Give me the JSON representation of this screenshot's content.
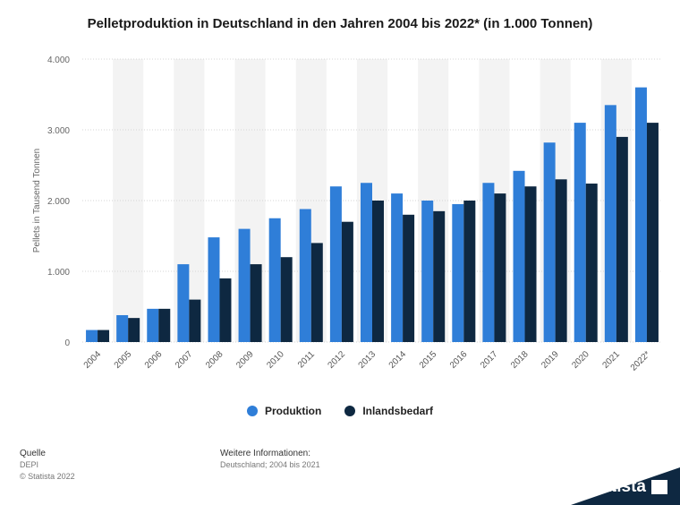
{
  "title": "Pelletproduktion in Deutschland in den Jahren 2004 bis 2022* (in 1.000 Tonnen)",
  "colors": {
    "produktion": "#2f7ed8",
    "inlandsbedarf": "#0e2841",
    "band": "#f3f3f3",
    "grid": "#d5d5d5",
    "brand": "#0e2841"
  },
  "chart_data": {
    "type": "bar",
    "title": "Pelletproduktion in Deutschland in den Jahren 2004 bis 2022* (in 1.000 Tonnen)",
    "xlabel": "",
    "ylabel": "Pellets in Tausend Tonnen",
    "ylim": [
      0,
      4000
    ],
    "yticks": [
      0,
      1000,
      2000,
      3000,
      4000
    ],
    "ytick_labels": [
      "0",
      "1.000",
      "2.000",
      "3.000",
      "4.000"
    ],
    "grid": true,
    "legend_position": "bottom",
    "categories": [
      "2004",
      "2005",
      "2006",
      "2007",
      "2008",
      "2009",
      "2010",
      "2011",
      "2012",
      "2013",
      "2014",
      "2015",
      "2016",
      "2017",
      "2018",
      "2019",
      "2020",
      "2021",
      "2022*"
    ],
    "series": [
      {
        "name": "Produktion",
        "values": [
          170,
          380,
          470,
          1100,
          1480,
          1600,
          1750,
          1880,
          2200,
          2250,
          2100,
          2000,
          1950,
          2250,
          2420,
          2820,
          3100,
          3350,
          3600
        ]
      },
      {
        "name": "Inlandsbedarf",
        "values": [
          170,
          340,
          470,
          600,
          900,
          1100,
          1200,
          1400,
          1700,
          2000,
          1800,
          1850,
          2000,
          2100,
          2200,
          2300,
          2240,
          2900,
          3100
        ]
      }
    ]
  },
  "legend": {
    "items": [
      "Produktion",
      "Inlandsbedarf"
    ]
  },
  "footer": {
    "source_heading": "Quelle",
    "source_name": "DEPI",
    "copyright": "© Statista 2022",
    "info_heading": "Weitere Informationen:",
    "info_text": "Deutschland; 2004 bis 2021"
  },
  "brand": {
    "name": "statista"
  }
}
